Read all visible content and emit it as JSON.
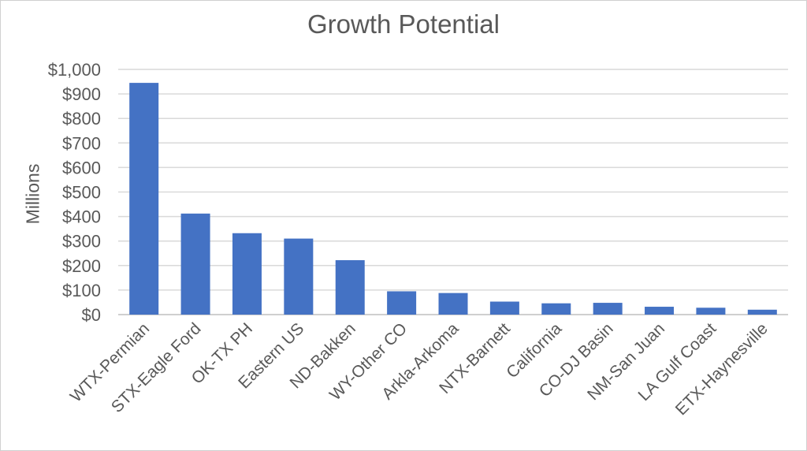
{
  "chart_data": {
    "type": "bar",
    "title": "Growth Potential",
    "xlabel": "",
    "ylabel": "Millions",
    "ylim": [
      0,
      1000
    ],
    "y_ticks": [
      "$0",
      "$100",
      "$200",
      "$300",
      "$400",
      "$500",
      "$600",
      "$700",
      "$800",
      "$900",
      "$1,000"
    ],
    "grid": true,
    "bar_color": "#4472C4",
    "categories": [
      "WTX-Permian",
      "STX-Eagle Ford",
      "OK-TX PH",
      "Eastern US",
      "ND-Bakken",
      "WY-Other CO",
      "Arkla-Arkoma",
      "NTX-Barnett",
      "California",
      "CO-DJ Basin",
      "NM-San Juan",
      "LA Gulf Coast",
      "ETX-Haynesville"
    ],
    "values": [
      945,
      412,
      332,
      310,
      222,
      95,
      88,
      53,
      46,
      48,
      32,
      28,
      20
    ]
  }
}
